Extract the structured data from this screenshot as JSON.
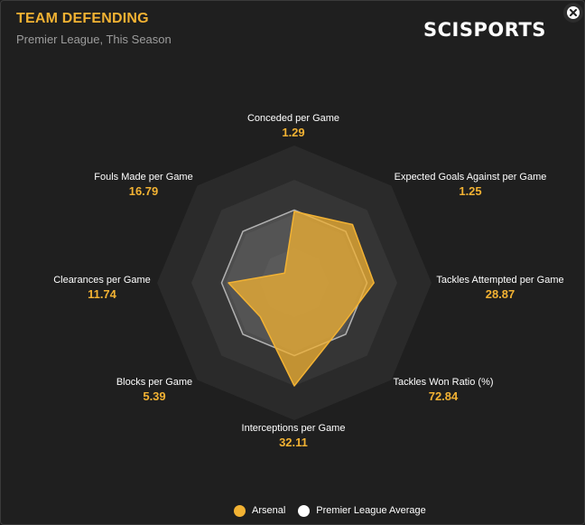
{
  "header": {
    "title": "TEAM DEFENDING",
    "subtitle": "Premier League, This Season",
    "brand": "SCISPORTS"
  },
  "colors": {
    "team": "#f2b233",
    "average": "#ffffff",
    "ring_dark": "#2a2a2a",
    "ring_light": "#353535"
  },
  "icons": {
    "close": "close-icon"
  },
  "legend": [
    {
      "label": "Arsenal",
      "color": "#f2b233"
    },
    {
      "label": "Premier League Average",
      "color": "#ffffff"
    }
  ],
  "chart_data": {
    "type": "radar",
    "title": "TEAM DEFENDING",
    "subtitle": "Premier League, This Season",
    "rings": 4,
    "axes": [
      {
        "name": "Conceded per Game",
        "value": "1.29"
      },
      {
        "name": "Expected Goals Against per Game",
        "value": "1.25"
      },
      {
        "name": "Tackles Attempted per Game",
        "value": "28.87"
      },
      {
        "name": "Tackles Won Ratio (%)",
        "value": "72.84"
      },
      {
        "name": "Interceptions per Game",
        "value": "32.11"
      },
      {
        "name": "Blocks per Game",
        "value": "5.39"
      },
      {
        "name": "Clearances per Game",
        "value": "11.74"
      },
      {
        "name": "Fouls Made per Game",
        "value": "16.79"
      }
    ],
    "series": [
      {
        "name": "Arsenal",
        "scores": [
          0.52,
          0.6,
          0.58,
          0.47,
          0.75,
          0.35,
          0.48,
          0.1
        ]
      },
      {
        "name": "Premier League Average",
        "scores": [
          0.53,
          0.53,
          0.53,
          0.53,
          0.53,
          0.53,
          0.53,
          0.53
        ]
      }
    ]
  }
}
